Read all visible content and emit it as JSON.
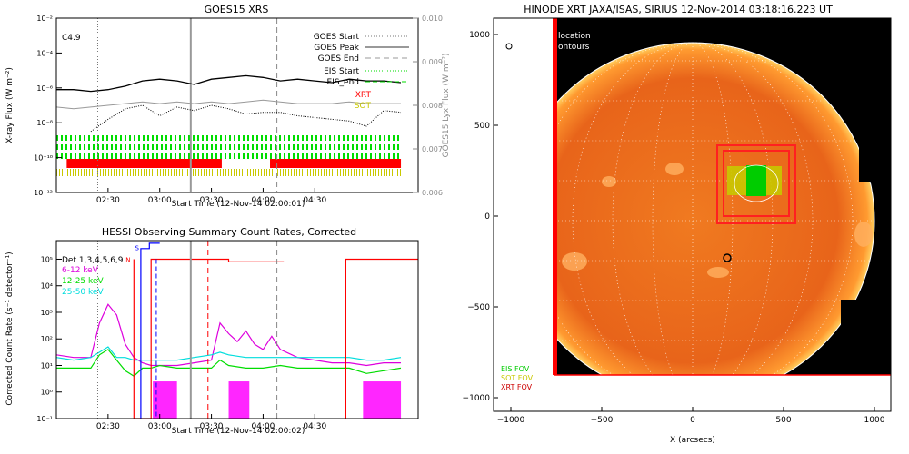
{
  "chart_data": [
    {
      "type": "line",
      "title": "GOES15 XRS",
      "xlabel": "Start Time (12-Nov-14 02:00:01)",
      "ylabel": "X-ray Flux (W m⁻²)",
      "ylabel_right": "GOES15 Lyx Flux (W m⁻²)",
      "x_ticks": [
        "02:30",
        "03:00",
        "03:30",
        "04:00",
        "04:30"
      ],
      "y_ticks": [
        "10⁻²",
        "10⁻⁴",
        "10⁻⁶",
        "10⁻⁸",
        "10⁻¹⁰",
        "10⁻¹²"
      ],
      "y_ticks_right": [
        "0.010",
        "0.009",
        "0.008",
        "0.007",
        "0.006"
      ],
      "annotation": "C4.9",
      "legend": [
        "GOES Start",
        "GOES Peak",
        "GOES End",
        "EIS Start",
        "EIS_end",
        "XRT",
        "SOT"
      ],
      "series": [
        {
          "x_min": [
            0,
            10,
            20,
            30,
            40,
            50,
            60,
            70,
            80,
            90,
            100,
            110,
            120,
            130,
            140,
            150,
            160,
            170,
            180,
            190,
            200
          ],
          "values": [
            -6.1,
            -6.1,
            -6.2,
            -6.1,
            -5.9,
            -5.6,
            -5.5,
            -5.6,
            -5.8,
            -5.5,
            -5.4,
            -5.3,
            -5.4,
            -5.6,
            -5.5,
            -5.6,
            -5.7,
            -5.5,
            -5.6,
            -5.6,
            -5.7
          ]
        },
        {
          "x_min": [
            0,
            10,
            20,
            30,
            40,
            50,
            60,
            70,
            80,
            90,
            100,
            110,
            120,
            130,
            140,
            150,
            160,
            170,
            180,
            190,
            200
          ],
          "values": [
            -7.1,
            -7.2,
            -7.1,
            -7.0,
            -6.9,
            -6.8,
            -6.9,
            -6.8,
            -6.9,
            -6.8,
            -6.9,
            -6.8,
            -6.7,
            -6.8,
            -6.9,
            -6.9,
            -6.9,
            -6.8,
            -6.9,
            -6.9,
            -6.9
          ]
        },
        {
          "x_min": [
            20,
            30,
            40,
            50,
            60,
            70,
            80,
            90,
            100,
            110,
            120,
            130,
            140,
            150,
            160,
            170,
            180,
            190,
            200
          ],
          "values": [
            -8.5,
            -7.8,
            -7.2,
            -7.0,
            -7.6,
            -7.1,
            -7.3,
            -7.0,
            -7.2,
            -7.5,
            -7.4,
            -7.4,
            -7.6,
            -7.7,
            -7.8,
            -7.9,
            -8.2,
            -7.3,
            -7.4
          ]
        }
      ]
    },
    {
      "type": "line",
      "title": "HESSI Observing Summary Count Rates, Corrected",
      "xlabel": "Start Time (12-Nov-14 02:00:02)",
      "ylabel": "Corrected Count Rate (s⁻¹ detector⁻¹)",
      "x_ticks": [
        "02:30",
        "03:00",
        "03:30",
        "04:00",
        "04:30"
      ],
      "y_ticks": [
        "10⁵",
        "10⁴",
        "10³",
        "10²",
        "10¹",
        "10⁰",
        "10⁻¹"
      ],
      "legend_header": "Det 1,3,4,5,6,9",
      "legend": [
        "6-12 keV",
        "12-25 keV",
        "25-50 keV"
      ],
      "flags": [
        "N",
        "S"
      ],
      "series": [
        {
          "name": "6-12 keV",
          "x_min": [
            0,
            10,
            20,
            25,
            30,
            35,
            40,
            45,
            50,
            55,
            60,
            70,
            80,
            90,
            95,
            100,
            105,
            110,
            115,
            120,
            125,
            130,
            140,
            150,
            160,
            170,
            180,
            190,
            200
          ],
          "values": [
            1.4,
            1.3,
            1.3,
            2.6,
            3.3,
            2.9,
            1.8,
            1.3,
            1.1,
            1.0,
            1.0,
            1.0,
            1.1,
            1.2,
            2.6,
            2.2,
            1.9,
            2.3,
            1.8,
            1.6,
            2.1,
            1.6,
            1.3,
            1.2,
            1.1,
            1.1,
            1.0,
            1.1,
            1.1
          ]
        },
        {
          "name": "12-25 keV",
          "x_min": [
            0,
            10,
            20,
            25,
            30,
            35,
            40,
            45,
            50,
            55,
            60,
            70,
            80,
            90,
            95,
            100,
            110,
            120,
            130,
            140,
            150,
            160,
            170,
            180,
            190,
            200
          ],
          "values": [
            0.9,
            0.9,
            0.9,
            1.4,
            1.6,
            1.2,
            0.8,
            0.6,
            0.9,
            0.9,
            1.0,
            0.9,
            0.9,
            0.9,
            1.2,
            1.0,
            0.9,
            0.9,
            1.0,
            0.9,
            0.9,
            0.9,
            0.9,
            0.7,
            0.8,
            0.9
          ]
        },
        {
          "name": "25-50 keV",
          "x_min": [
            0,
            10,
            20,
            25,
            30,
            35,
            40,
            45,
            50,
            55,
            60,
            70,
            80,
            90,
            95,
            100,
            110,
            120,
            130,
            140,
            150,
            160,
            170,
            180,
            190,
            200
          ],
          "values": [
            1.3,
            1.2,
            1.3,
            1.5,
            1.7,
            1.3,
            1.3,
            1.2,
            1.2,
            1.2,
            1.2,
            1.2,
            1.3,
            1.4,
            1.5,
            1.4,
            1.3,
            1.3,
            1.3,
            1.3,
            1.3,
            1.3,
            1.3,
            1.2,
            1.2,
            1.3
          ]
        }
      ]
    },
    {
      "type": "image",
      "title": "HINODE XRT JAXA/ISAS, SIRIUS 12-Nov-2014 03:18:16.223 UT",
      "xlabel": "X (arcsecs)",
      "x_ticks": [
        "−1000",
        "−500",
        "0",
        "500",
        "1000"
      ],
      "y_ticks": [
        "1000",
        "500",
        "0",
        "−500",
        "−1000"
      ],
      "labels": [
        "location",
        "ontours"
      ],
      "legend": [
        "EIS FOV",
        "SOT FOV",
        "XRT FOV"
      ]
    }
  ]
}
